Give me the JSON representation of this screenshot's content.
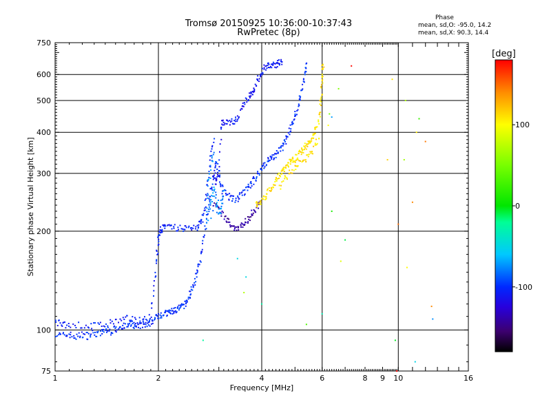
{
  "header": {
    "title": "Tromsø 20150925 10:36:00-10:37:43",
    "subtitle": "RwPretec (8p)"
  },
  "phase_box": {
    "heading": "Phase",
    "line_o": "mean, sd,O: -95.0, 14.2",
    "line_x": "mean, sd,X:  90.3, 14.4"
  },
  "colorbar": {
    "label": "[deg]",
    "ticks": [
      "100",
      "0",
      "-100"
    ],
    "range": [
      -180,
      180
    ]
  },
  "chart_data": {
    "type": "scatter",
    "xlabel": "Frequency [MHz]",
    "ylabel": "Stationary phase Virtual Height [km]",
    "xscale": "log",
    "yscale": "log",
    "xlim": [
      1,
      16
    ],
    "ylim": [
      75,
      750
    ],
    "xticks": [
      1,
      2,
      4,
      6,
      8,
      9,
      10,
      16
    ],
    "xtick_labels": [
      "1",
      "2",
      "4",
      "6",
      "8",
      "9",
      "10",
      "16"
    ],
    "yticks": [
      75,
      100,
      200,
      300,
      400,
      500,
      600,
      750
    ],
    "ytick_labels": [
      "75",
      "100",
      "200",
      "300",
      "400",
      "500",
      "600",
      "750"
    ],
    "grid_x": [
      2,
      4,
      6,
      10
    ],
    "grid_y": [
      100,
      200,
      300,
      400,
      500,
      600
    ],
    "series": [
      {
        "role": "o-mode-low",
        "phase": -100,
        "points": [
          [
            1.0,
            97
          ],
          [
            1.05,
            96
          ],
          [
            1.1,
            97
          ],
          [
            1.15,
            95
          ],
          [
            1.2,
            97
          ],
          [
            1.25,
            96
          ],
          [
            1.3,
            98
          ],
          [
            1.35,
            97
          ],
          [
            1.4,
            100
          ],
          [
            1.45,
            99
          ],
          [
            1.5,
            101
          ],
          [
            1.55,
            103
          ],
          [
            1.6,
            102
          ],
          [
            1.65,
            104
          ],
          [
            1.7,
            103
          ],
          [
            1.75,
            102
          ],
          [
            1.8,
            104
          ],
          [
            1.85,
            103
          ],
          [
            1.9,
            105
          ],
          [
            1.95,
            108
          ],
          [
            2.0,
            111
          ],
          [
            2.05,
            112
          ],
          [
            2.1,
            112
          ],
          [
            2.15,
            113
          ],
          [
            2.2,
            114
          ],
          [
            2.25,
            115
          ],
          [
            2.3,
            116
          ],
          [
            2.35,
            118
          ],
          [
            2.4,
            120
          ],
          [
            2.45,
            125
          ],
          [
            2.5,
            132
          ],
          [
            2.55,
            140
          ],
          [
            2.6,
            150
          ],
          [
            2.65,
            165
          ],
          [
            2.7,
            185
          ],
          [
            2.75,
            210
          ],
          [
            2.8,
            240
          ],
          [
            2.85,
            270
          ],
          [
            2.9,
            300
          ],
          [
            2.95,
            325
          ],
          [
            3.0,
            300
          ],
          [
            3.05,
            275
          ],
          [
            3.1,
            262
          ],
          [
            3.2,
            255
          ],
          [
            3.3,
            250
          ],
          [
            3.4,
            252
          ],
          [
            3.5,
            258
          ],
          [
            3.6,
            266
          ],
          [
            3.7,
            275
          ],
          [
            3.8,
            286
          ],
          [
            3.9,
            298
          ],
          [
            4.0,
            312
          ],
          [
            4.1,
            322
          ],
          [
            4.2,
            330
          ],
          [
            4.3,
            336
          ],
          [
            4.4,
            342
          ],
          [
            4.5,
            350
          ],
          [
            4.6,
            362
          ],
          [
            4.7,
            378
          ],
          [
            4.8,
            395
          ],
          [
            4.9,
            420
          ],
          [
            5.0,
            445
          ],
          [
            5.1,
            480
          ],
          [
            5.2,
            520
          ],
          [
            5.3,
            570
          ],
          [
            5.35,
            620
          ],
          [
            5.4,
            650
          ]
        ]
      },
      {
        "role": "o-mode-low-2",
        "phase": -105,
        "points": [
          [
            1.0,
            105
          ],
          [
            1.05,
            104
          ],
          [
            1.1,
            104
          ],
          [
            1.2,
            103
          ],
          [
            1.3,
            103
          ],
          [
            1.4,
            104
          ],
          [
            1.5,
            106
          ],
          [
            1.6,
            108
          ],
          [
            1.7,
            108
          ],
          [
            1.8,
            107
          ],
          [
            1.9,
            110
          ],
          [
            1.95,
            140
          ],
          [
            1.98,
            170
          ],
          [
            2.0,
            185
          ],
          [
            2.02,
            200
          ],
          [
            2.05,
            205
          ],
          [
            2.1,
            205
          ],
          [
            2.2,
            205
          ],
          [
            2.3,
            204
          ],
          [
            2.4,
            204
          ],
          [
            2.5,
            205
          ],
          [
            2.6,
            206
          ],
          [
            2.65,
            212
          ],
          [
            2.7,
            220
          ],
          [
            2.75,
            250
          ],
          [
            2.8,
            290
          ],
          [
            2.85,
            340
          ],
          [
            2.9,
            390
          ]
        ]
      },
      {
        "role": "o-mode-upper",
        "phase": -110,
        "points": [
          [
            2.9,
            290
          ],
          [
            2.95,
            280
          ],
          [
            3.0,
            300
          ],
          [
            3.05,
            420
          ],
          [
            3.1,
            430
          ],
          [
            3.2,
            430
          ],
          [
            3.3,
            432
          ],
          [
            3.4,
            440
          ],
          [
            3.5,
            470
          ],
          [
            3.6,
            500
          ],
          [
            3.7,
            520
          ],
          [
            3.75,
            530
          ],
          [
            3.8,
            545
          ],
          [
            3.9,
            575
          ],
          [
            4.0,
            610
          ],
          [
            4.1,
            632
          ],
          [
            4.2,
            638
          ],
          [
            4.3,
            640
          ],
          [
            4.4,
            645
          ],
          [
            4.5,
            652
          ],
          [
            4.6,
            660
          ]
        ]
      },
      {
        "role": "o-mode-purple",
        "phase": -140,
        "points": [
          [
            2.9,
            240
          ],
          [
            3.0,
            232
          ],
          [
            3.1,
            222
          ],
          [
            3.2,
            213
          ],
          [
            3.3,
            207
          ],
          [
            3.4,
            205
          ],
          [
            3.5,
            208
          ],
          [
            3.6,
            214
          ],
          [
            3.7,
            222
          ],
          [
            3.8,
            230
          ],
          [
            3.9,
            240
          ],
          [
            4.0,
            248
          ]
        ]
      },
      {
        "role": "o-mode-cyan",
        "phase": -75,
        "points": [
          [
            2.8,
            230
          ],
          [
            2.85,
            250
          ],
          [
            2.9,
            270
          ],
          [
            2.95,
            245
          ],
          [
            3.0,
            225
          ],
          [
            3.05,
            240
          ],
          [
            3.1,
            260
          ],
          [
            2.75,
            210
          ],
          [
            2.8,
            280
          ],
          [
            2.85,
            320
          ],
          [
            2.9,
            360
          ]
        ]
      },
      {
        "role": "x-mode",
        "phase": 110,
        "points": [
          [
            3.85,
            240
          ],
          [
            3.9,
            244
          ],
          [
            4.0,
            246
          ],
          [
            4.1,
            255
          ],
          [
            4.2,
            265
          ],
          [
            4.3,
            275
          ],
          [
            4.4,
            286
          ],
          [
            4.5,
            296
          ],
          [
            4.6,
            305
          ],
          [
            4.7,
            314
          ],
          [
            4.8,
            322
          ],
          [
            4.9,
            328
          ],
          [
            5.0,
            333
          ],
          [
            5.1,
            340
          ],
          [
            5.2,
            348
          ],
          [
            5.3,
            356
          ],
          [
            5.4,
            364
          ],
          [
            5.5,
            372
          ],
          [
            5.6,
            385
          ],
          [
            5.7,
            400
          ],
          [
            5.8,
            420
          ],
          [
            5.9,
            455
          ],
          [
            5.95,
            500
          ],
          [
            6.0,
            560
          ],
          [
            6.02,
            620
          ],
          [
            6.05,
            650
          ],
          [
            4.5,
            270
          ],
          [
            4.7,
            290
          ],
          [
            4.9,
            305
          ],
          [
            5.1,
            318
          ],
          [
            5.3,
            330
          ],
          [
            5.5,
            340
          ],
          [
            5.7,
            358
          ],
          [
            5.9,
            390
          ]
        ]
      },
      {
        "role": "scattered",
        "phase": 0,
        "points": [
          [
            6.3,
            455
          ],
          [
            6.25,
            420
          ],
          [
            6.4,
            445
          ],
          [
            7.3,
            637
          ],
          [
            6.7,
            543
          ],
          [
            10.5,
            500
          ],
          [
            11.5,
            440
          ],
          [
            12.0,
            375
          ],
          [
            11.3,
            400
          ],
          [
            9.6,
            580
          ],
          [
            10.4,
            330
          ],
          [
            9.3,
            330
          ],
          [
            11.0,
            245
          ],
          [
            10.0,
            210
          ],
          [
            6.4,
            230
          ],
          [
            7.0,
            188
          ],
          [
            6.8,
            162
          ],
          [
            10.6,
            155
          ],
          [
            12.5,
            118
          ],
          [
            12.6,
            108
          ],
          [
            6.0,
            112
          ],
          [
            5.4,
            104
          ],
          [
            3.6,
            145
          ],
          [
            3.4,
            165
          ],
          [
            3.55,
            130
          ],
          [
            4.0,
            120
          ],
          [
            9.8,
            93
          ],
          [
            9.9,
            75
          ],
          [
            11.2,
            80
          ],
          [
            2.7,
            93
          ]
        ]
      }
    ]
  }
}
